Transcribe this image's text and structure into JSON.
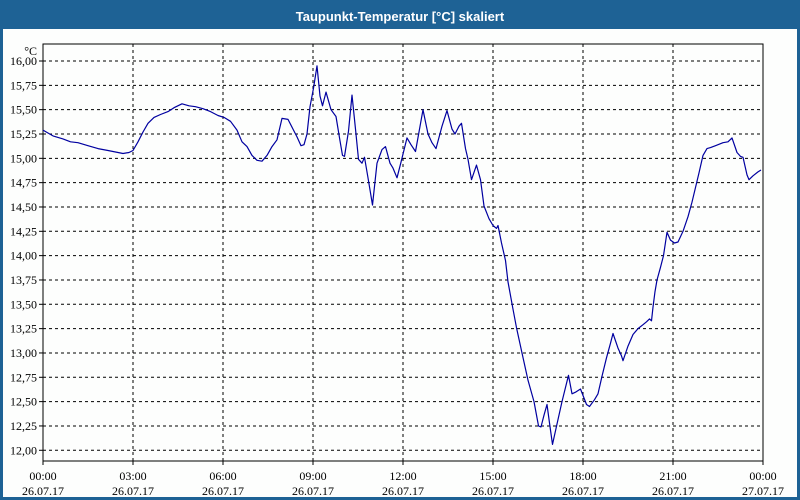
{
  "window": {
    "title": "Taupunkt-Temperatur [°C] skaliert"
  },
  "colors": {
    "titlebar_bg": "#1e6295",
    "window_border": "#1e6295",
    "title_text": "#ffffff",
    "plot_border": "#000000",
    "grid": "#000000",
    "line": "#0000a0",
    "content_bg": "#fdfefd"
  },
  "chart_data": {
    "type": "line",
    "title": "Taupunkt-Temperatur [°C] skaliert",
    "unit_label": "°C",
    "grid": "dashed",
    "legend": "none",
    "ylim": [
      12.0,
      16.0
    ],
    "y_tick_step": 0.25,
    "y_tick_labels": [
      "16,00",
      "15,75",
      "15,50",
      "15,25",
      "15,00",
      "14,75",
      "14,50",
      "14,25",
      "14,00",
      "13,75",
      "13,50",
      "13,25",
      "13,00",
      "12,75",
      "12,50",
      "12,25",
      "12,00"
    ],
    "x_range_minutes": [
      0,
      1440
    ],
    "x_ticks": [
      {
        "time": "00:00",
        "date": "26.07.17"
      },
      {
        "time": "03:00",
        "date": "26.07.17"
      },
      {
        "time": "06:00",
        "date": "26.07.17"
      },
      {
        "time": "09:00",
        "date": "26.07.17"
      },
      {
        "time": "12:00",
        "date": "26.07.17"
      },
      {
        "time": "15:00",
        "date": "26.07.17"
      },
      {
        "time": "18:00",
        "date": "26.07.17"
      },
      {
        "time": "21:00",
        "date": "26.07.17"
      },
      {
        "time": "00:00",
        "date": "27.07.17"
      }
    ],
    "series": [
      {
        "name": "Taupunkt-Temperatur",
        "color": "#0000a0",
        "points": [
          [
            0,
            15.29
          ],
          [
            20,
            15.23
          ],
          [
            40,
            15.2
          ],
          [
            55,
            15.17
          ],
          [
            70,
            15.16
          ],
          [
            90,
            15.13
          ],
          [
            110,
            15.1
          ],
          [
            130,
            15.08
          ],
          [
            150,
            15.06
          ],
          [
            160,
            15.05
          ],
          [
            172,
            15.06
          ],
          [
            180,
            15.08
          ],
          [
            190,
            15.17
          ],
          [
            200,
            15.27
          ],
          [
            210,
            15.36
          ],
          [
            222,
            15.42
          ],
          [
            235,
            15.45
          ],
          [
            250,
            15.48
          ],
          [
            262,
            15.52
          ],
          [
            278,
            15.56
          ],
          [
            292,
            15.54
          ],
          [
            305,
            15.53
          ],
          [
            320,
            15.51
          ],
          [
            335,
            15.48
          ],
          [
            350,
            15.44
          ],
          [
            362,
            15.42
          ],
          [
            375,
            15.38
          ],
          [
            388,
            15.29
          ],
          [
            398,
            15.17
          ],
          [
            408,
            15.12
          ],
          [
            418,
            15.03
          ],
          [
            428,
            14.98
          ],
          [
            438,
            14.97
          ],
          [
            448,
            15.03
          ],
          [
            458,
            15.12
          ],
          [
            468,
            15.19
          ],
          [
            478,
            15.41
          ],
          [
            490,
            15.4
          ],
          [
            500,
            15.3
          ],
          [
            508,
            15.22
          ],
          [
            516,
            15.13
          ],
          [
            522,
            15.14
          ],
          [
            528,
            15.25
          ],
          [
            534,
            15.53
          ],
          [
            541,
            15.72
          ],
          [
            548,
            15.95
          ],
          [
            554,
            15.64
          ],
          [
            559,
            15.54
          ],
          [
            566,
            15.68
          ],
          [
            576,
            15.5
          ],
          [
            586,
            15.43
          ],
          [
            594,
            15.18
          ],
          [
            599,
            15.03
          ],
          [
            603,
            15.02
          ],
          [
            611,
            15.28
          ],
          [
            618,
            15.65
          ],
          [
            625,
            15.3
          ],
          [
            631,
            14.99
          ],
          [
            638,
            14.95
          ],
          [
            643,
            15.01
          ],
          [
            650,
            14.8
          ],
          [
            659,
            14.52
          ],
          [
            668,
            14.95
          ],
          [
            678,
            15.09
          ],
          [
            685,
            15.12
          ],
          [
            694,
            14.95
          ],
          [
            700,
            14.9
          ],
          [
            708,
            14.8
          ],
          [
            716,
            14.96
          ],
          [
            728,
            15.21
          ],
          [
            736,
            15.14
          ],
          [
            745,
            15.07
          ],
          [
            760,
            15.5
          ],
          [
            770,
            15.25
          ],
          [
            778,
            15.16
          ],
          [
            786,
            15.1
          ],
          [
            798,
            15.33
          ],
          [
            808,
            15.49
          ],
          [
            818,
            15.3
          ],
          [
            824,
            15.25
          ],
          [
            832,
            15.33
          ],
          [
            837,
            15.36
          ],
          [
            845,
            15.1
          ],
          [
            850,
            14.99
          ],
          [
            857,
            14.78
          ],
          [
            867,
            14.93
          ],
          [
            875,
            14.78
          ],
          [
            882,
            14.51
          ],
          [
            892,
            14.38
          ],
          [
            900,
            14.31
          ],
          [
            907,
            14.28
          ],
          [
            910,
            14.31
          ],
          [
            917,
            14.13
          ],
          [
            925,
            13.95
          ],
          [
            930,
            13.73
          ],
          [
            940,
            13.45
          ],
          [
            947,
            13.26
          ],
          [
            958,
            13.0
          ],
          [
            970,
            12.72
          ],
          [
            982,
            12.5
          ],
          [
            991,
            12.25
          ],
          [
            996,
            12.24
          ],
          [
            1002,
            12.36
          ],
          [
            1008,
            12.47
          ],
          [
            1013,
            12.28
          ],
          [
            1019,
            12.06
          ],
          [
            1028,
            12.27
          ],
          [
            1038,
            12.5
          ],
          [
            1051,
            12.77
          ],
          [
            1058,
            12.58
          ],
          [
            1066,
            12.6
          ],
          [
            1075,
            12.63
          ],
          [
            1087,
            12.47
          ],
          [
            1093,
            12.45
          ],
          [
            1103,
            12.52
          ],
          [
            1110,
            12.58
          ],
          [
            1118,
            12.76
          ],
          [
            1127,
            12.95
          ],
          [
            1135,
            13.1
          ],
          [
            1140,
            13.2
          ],
          [
            1150,
            13.05
          ],
          [
            1157,
            12.97
          ],
          [
            1160,
            12.92
          ],
          [
            1170,
            13.07
          ],
          [
            1180,
            13.19
          ],
          [
            1190,
            13.25
          ],
          [
            1200,
            13.29
          ],
          [
            1207,
            13.32
          ],
          [
            1213,
            13.35
          ],
          [
            1217,
            13.33
          ],
          [
            1220,
            13.47
          ],
          [
            1224,
            13.63
          ],
          [
            1228,
            13.75
          ],
          [
            1235,
            13.88
          ],
          [
            1241,
            14.0
          ],
          [
            1248,
            14.24
          ],
          [
            1255,
            14.16
          ],
          [
            1263,
            14.13
          ],
          [
            1270,
            14.14
          ],
          [
            1280,
            14.25
          ],
          [
            1290,
            14.4
          ],
          [
            1298,
            14.55
          ],
          [
            1305,
            14.7
          ],
          [
            1312,
            14.85
          ],
          [
            1320,
            15.03
          ],
          [
            1328,
            15.1
          ],
          [
            1335,
            15.11
          ],
          [
            1345,
            15.13
          ],
          [
            1360,
            15.16
          ],
          [
            1370,
            15.17
          ],
          [
            1378,
            15.21
          ],
          [
            1388,
            15.06
          ],
          [
            1395,
            15.02
          ],
          [
            1400,
            15.01
          ],
          [
            1408,
            14.83
          ],
          [
            1412,
            14.78
          ],
          [
            1420,
            14.82
          ],
          [
            1430,
            14.86
          ],
          [
            1436,
            14.88
          ]
        ]
      }
    ]
  }
}
